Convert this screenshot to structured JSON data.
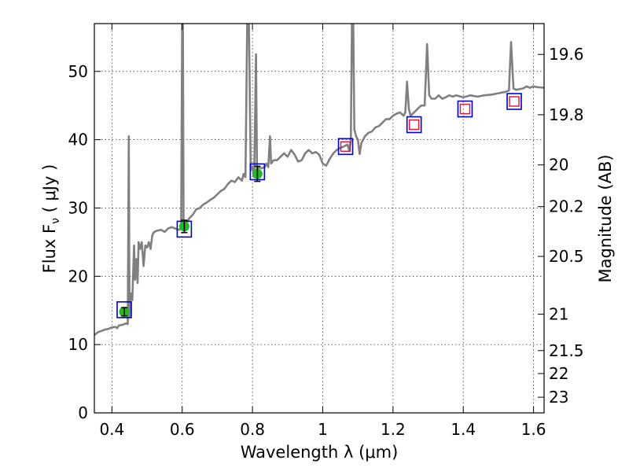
{
  "chart_data": {
    "type": "line",
    "xlabel": "Wavelength  λ (μm)",
    "ylabel": "Flux  F",
    "ylabel_subscript": "ν",
    "ylabel_unit": "  ( μJy )",
    "y2label": "Magnitude (AB)",
    "xlim": [
      0.35,
      1.63
    ],
    "ylim": [
      0,
      57
    ],
    "grid": true,
    "x_ticks": [
      {
        "value": 0.4,
        "label": "0.4"
      },
      {
        "value": 0.6,
        "label": "0.6"
      },
      {
        "value": 0.8,
        "label": "0.8"
      },
      {
        "value": 1.0,
        "label": "1"
      },
      {
        "value": 1.2,
        "label": "1.2"
      },
      {
        "value": 1.4,
        "label": "1.4"
      },
      {
        "value": 1.6,
        "label": "1.6"
      }
    ],
    "y_ticks": [
      {
        "value": 0,
        "label": "0"
      },
      {
        "value": 10,
        "label": "10"
      },
      {
        "value": 20,
        "label": "20"
      },
      {
        "value": 30,
        "label": "30"
      },
      {
        "value": 40,
        "label": "40"
      },
      {
        "value": 50,
        "label": "50"
      }
    ],
    "y2_ticks": [
      {
        "value": 19.6,
        "label": "19.6"
      },
      {
        "value": 19.8,
        "label": "19.8"
      },
      {
        "value": 20.0,
        "label": "20"
      },
      {
        "value": 20.2,
        "label": "20.2"
      },
      {
        "value": 20.5,
        "label": "20.5"
      },
      {
        "value": 21.0,
        "label": "21"
      },
      {
        "value": 21.5,
        "label": "21.5"
      },
      {
        "value": 22.0,
        "label": "22"
      },
      {
        "value": 23.0,
        "label": "23"
      }
    ],
    "colors": {
      "spectrum": "#808080",
      "model_box": "#0000cc",
      "observed_box": "#dd1133",
      "observed_point": "#22bb22",
      "errorbar": "#000000"
    },
    "spectrum": {
      "points": [
        [
          0.35,
          11.4
        ],
        [
          0.36,
          11.8
        ],
        [
          0.37,
          12.0
        ],
        [
          0.38,
          12.2
        ],
        [
          0.39,
          12.3
        ],
        [
          0.4,
          12.5
        ],
        [
          0.41,
          12.6
        ],
        [
          0.415,
          12.4
        ],
        [
          0.42,
          12.8
        ],
        [
          0.43,
          12.9
        ],
        [
          0.44,
          13.1
        ],
        [
          0.445,
          13.0
        ],
        [
          0.448,
          40.5
        ],
        [
          0.45,
          14.0
        ],
        [
          0.452,
          16.5
        ],
        [
          0.455,
          17.5
        ],
        [
          0.458,
          16.5
        ],
        [
          0.46,
          20.0
        ],
        [
          0.463,
          24.5
        ],
        [
          0.466,
          19.5
        ],
        [
          0.47,
          22.5
        ],
        [
          0.473,
          19.0
        ],
        [
          0.476,
          25.0
        ],
        [
          0.48,
          24.0
        ],
        [
          0.485,
          25.0
        ],
        [
          0.49,
          21.5
        ],
        [
          0.495,
          24.5
        ],
        [
          0.5,
          24.2
        ],
        [
          0.505,
          25.0
        ],
        [
          0.51,
          24.0
        ],
        [
          0.515,
          26.0
        ],
        [
          0.52,
          26.5
        ],
        [
          0.53,
          26.7
        ],
        [
          0.54,
          26.8
        ],
        [
          0.55,
          26.5
        ],
        [
          0.56,
          27.0
        ],
        [
          0.57,
          27.2
        ],
        [
          0.58,
          27.0
        ],
        [
          0.59,
          26.8
        ],
        [
          0.597,
          27.0
        ],
        [
          0.6,
          57.0
        ],
        [
          0.602,
          57.0
        ],
        [
          0.604,
          28.0
        ],
        [
          0.61,
          27.5
        ],
        [
          0.62,
          28.5
        ],
        [
          0.63,
          29.0
        ],
        [
          0.64,
          29.8
        ],
        [
          0.65,
          30.0
        ],
        [
          0.66,
          30.5
        ],
        [
          0.67,
          30.8
        ],
        [
          0.68,
          31.2
        ],
        [
          0.69,
          31.5
        ],
        [
          0.7,
          32.0
        ],
        [
          0.71,
          32.5
        ],
        [
          0.72,
          32.8
        ],
        [
          0.73,
          33.5
        ],
        [
          0.74,
          34.0
        ],
        [
          0.75,
          33.8
        ],
        [
          0.76,
          34.5
        ],
        [
          0.77,
          34.0
        ],
        [
          0.775,
          35.0
        ],
        [
          0.78,
          34.5
        ],
        [
          0.785,
          57.0
        ],
        [
          0.79,
          57.0
        ],
        [
          0.795,
          35.5
        ],
        [
          0.8,
          36.0
        ],
        [
          0.805,
          34.5
        ],
        [
          0.81,
          52.5
        ],
        [
          0.813,
          35.0
        ],
        [
          0.818,
          36.0
        ],
        [
          0.825,
          35.8
        ],
        [
          0.835,
          36.0
        ],
        [
          0.84,
          36.5
        ],
        [
          0.845,
          36.0
        ],
        [
          0.85,
          40.5
        ],
        [
          0.853,
          36.5
        ],
        [
          0.86,
          37.0
        ],
        [
          0.87,
          37.0
        ],
        [
          0.88,
          37.5
        ],
        [
          0.89,
          38.0
        ],
        [
          0.9,
          37.5
        ],
        [
          0.91,
          38.5
        ],
        [
          0.92,
          37.8
        ],
        [
          0.93,
          36.8
        ],
        [
          0.94,
          37.0
        ],
        [
          0.95,
          38.0
        ],
        [
          0.96,
          38.5
        ],
        [
          0.97,
          38.0
        ],
        [
          0.98,
          38.2
        ],
        [
          0.99,
          37.8
        ],
        [
          1.0,
          36.5
        ],
        [
          1.01,
          36.2
        ],
        [
          1.02,
          37.2
        ],
        [
          1.03,
          38.0
        ],
        [
          1.04,
          38.5
        ],
        [
          1.05,
          38.8
        ],
        [
          1.06,
          39.0
        ],
        [
          1.07,
          39.3
        ],
        [
          1.075,
          38.5
        ],
        [
          1.08,
          39.8
        ],
        [
          1.083,
          57.0
        ],
        [
          1.087,
          57.0
        ],
        [
          1.09,
          41.5
        ],
        [
          1.095,
          40.5
        ],
        [
          1.1,
          40.0
        ],
        [
          1.105,
          37.9
        ],
        [
          1.11,
          39.5
        ],
        [
          1.12,
          40.5
        ],
        [
          1.13,
          41.0
        ],
        [
          1.14,
          41.2
        ],
        [
          1.15,
          41.8
        ],
        [
          1.16,
          42.0
        ],
        [
          1.17,
          42.5
        ],
        [
          1.18,
          43.0
        ],
        [
          1.19,
          43.0
        ],
        [
          1.2,
          43.5
        ],
        [
          1.21,
          43.8
        ],
        [
          1.22,
          44.0
        ],
        [
          1.23,
          43.5
        ],
        [
          1.235,
          44.0
        ],
        [
          1.24,
          48.5
        ],
        [
          1.245,
          44.5
        ],
        [
          1.25,
          43.5
        ],
        [
          1.26,
          44.0
        ],
        [
          1.27,
          44.5
        ],
        [
          1.28,
          45.0
        ],
        [
          1.29,
          45.0
        ],
        [
          1.297,
          54.0
        ],
        [
          1.303,
          46.5
        ],
        [
          1.31,
          46.0
        ],
        [
          1.32,
          46.0
        ],
        [
          1.33,
          46.5
        ],
        [
          1.34,
          46.0
        ],
        [
          1.35,
          46.2
        ],
        [
          1.36,
          46.5
        ],
        [
          1.37,
          46.3
        ],
        [
          1.38,
          46.5
        ],
        [
          1.4,
          46.2
        ],
        [
          1.42,
          46.5
        ],
        [
          1.44,
          46.3
        ],
        [
          1.46,
          46.5
        ],
        [
          1.48,
          46.6
        ],
        [
          1.5,
          46.8
        ],
        [
          1.52,
          47.0
        ],
        [
          1.53,
          47.2
        ],
        [
          1.536,
          54.3
        ],
        [
          1.543,
          47.5
        ],
        [
          1.55,
          47.3
        ],
        [
          1.57,
          47.5
        ],
        [
          1.58,
          47.8
        ],
        [
          1.59,
          47.6
        ],
        [
          1.6,
          47.8
        ],
        [
          1.61,
          47.7
        ],
        [
          1.63,
          47.6
        ]
      ]
    },
    "model_photometry": [
      {
        "x": 0.435,
        "y": 15.1
      },
      {
        "x": 0.606,
        "y": 26.9
      },
      {
        "x": 0.814,
        "y": 35.3
      },
      {
        "x": 1.065,
        "y": 39.0
      },
      {
        "x": 1.26,
        "y": 42.2
      },
      {
        "x": 1.405,
        "y": 44.5
      },
      {
        "x": 1.545,
        "y": 45.6
      }
    ],
    "observed_photometry": [
      {
        "x": 0.435,
        "y": 14.8,
        "err": 0.6,
        "marker": "point"
      },
      {
        "x": 0.606,
        "y": 27.3,
        "err": 0.9,
        "marker": "point"
      },
      {
        "x": 0.814,
        "y": 35.0,
        "err": 1.1,
        "marker": "point"
      },
      {
        "x": 1.065,
        "y": 39.0,
        "err": 0.3,
        "marker": "square"
      },
      {
        "x": 1.26,
        "y": 42.2,
        "err": 0.3,
        "marker": "square"
      },
      {
        "x": 1.405,
        "y": 44.5,
        "err": 0.3,
        "marker": "square"
      },
      {
        "x": 1.545,
        "y": 45.6,
        "err": 0.3,
        "marker": "square"
      }
    ]
  }
}
